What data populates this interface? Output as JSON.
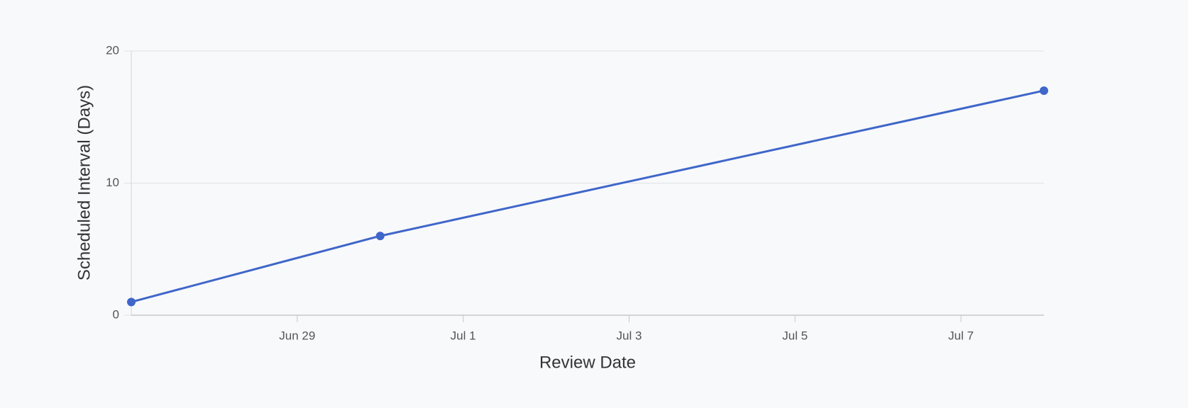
{
  "chart_data": {
    "type": "line",
    "x_label": "Review Date",
    "y_label": "Scheduled Interval (Days)",
    "x": [
      "Jun 27",
      "Jun 30",
      "Jul 8"
    ],
    "series": [
      {
        "name": "Scheduled Interval (Days)",
        "color": "#3f66c9",
        "values": [
          1,
          6,
          17
        ]
      }
    ],
    "xlim": [
      "Jun 27",
      "Jul 8"
    ],
    "xticks": [
      "Jun 29",
      "Jul 1",
      "Jul 3",
      "Jul 5",
      "Jul 7"
    ],
    "ylim": [
      0,
      20
    ],
    "yticks": [
      0,
      10,
      20
    ],
    "grid": true
  }
}
